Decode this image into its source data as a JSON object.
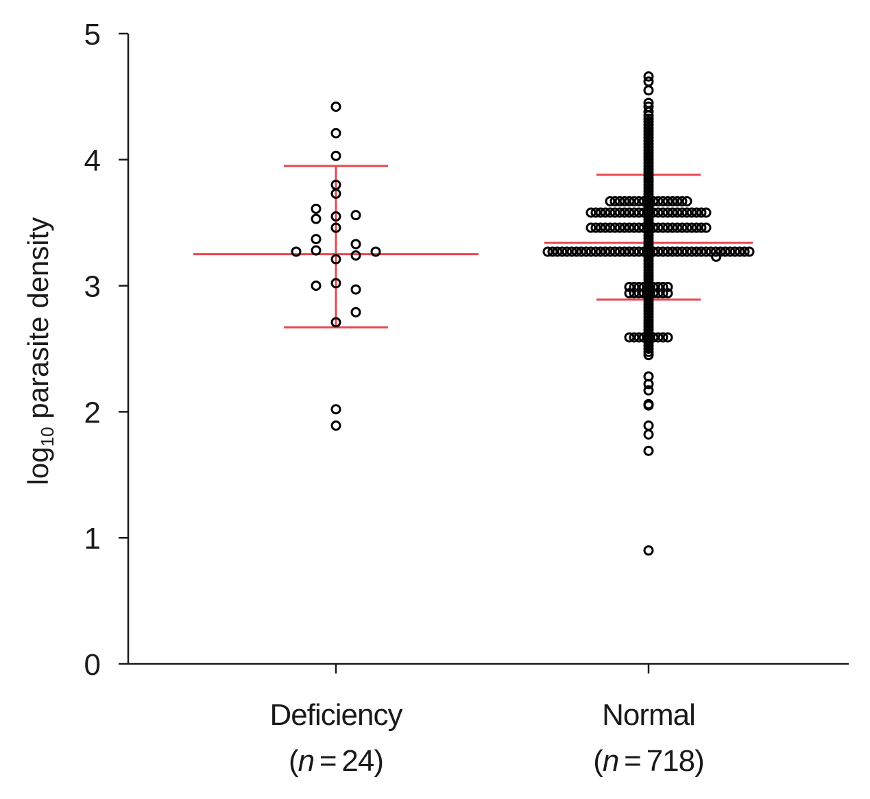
{
  "chart_data": {
    "type": "scatter",
    "subtype": "dot-plot-with-mean-sd",
    "ylabel": {
      "main": "log",
      "sub": "10",
      "rest": " parasite density"
    },
    "ylim": [
      0,
      5
    ],
    "yticks": [
      0,
      1,
      2,
      3,
      4,
      5
    ],
    "grid": false,
    "legend": "none",
    "colors": {
      "points": "#000000",
      "summary": "#e8474f",
      "axis": "#1a1a1a"
    },
    "categories": [
      {
        "label": "Deficiency",
        "n_text": "n",
        "n_value": "24"
      },
      {
        "label": "Normal",
        "n_text": "n",
        "n_value": "718"
      }
    ],
    "series": [
      {
        "category": "Deficiency",
        "mean": 3.25,
        "sd_upper": 3.95,
        "sd_lower": 2.67,
        "points": [
          [
            0,
            4.42
          ],
          [
            0,
            4.21
          ],
          [
            0,
            4.03
          ],
          [
            0,
            3.8
          ],
          [
            0,
            3.73
          ],
          [
            -1,
            3.61
          ],
          [
            -1,
            3.53
          ],
          [
            0,
            3.55
          ],
          [
            1,
            3.56
          ],
          [
            0,
            3.46
          ],
          [
            -1,
            3.37
          ],
          [
            1,
            3.33
          ],
          [
            -2,
            3.27
          ],
          [
            -1,
            3.28
          ],
          [
            1,
            3.24
          ],
          [
            2,
            3.27
          ],
          [
            0,
            3.21
          ],
          [
            -1,
            3.0
          ],
          [
            0,
            3.02
          ],
          [
            1,
            2.97
          ],
          [
            1,
            2.79
          ],
          [
            0,
            2.71
          ],
          [
            0,
            2.02
          ],
          [
            0,
            1.89
          ]
        ]
      },
      {
        "category": "Normal",
        "mean": 3.34,
        "sd_upper": 3.88,
        "sd_lower": 2.89,
        "dense_bands": [
          {
            "y": 3.27,
            "half_width": 5
          },
          {
            "y": 3.46,
            "half_width": 3
          },
          {
            "y": 3.58,
            "half_width": 3
          },
          {
            "y": 3.67,
            "half_width": 2
          },
          {
            "y": 2.99,
            "half_width": 1
          },
          {
            "y": 2.94,
            "half_width": 1
          },
          {
            "y": 2.59,
            "half_width": 1
          }
        ],
        "column": {
          "from": 2.45,
          "to": 4.35,
          "step": 0.025
        },
        "points": [
          [
            0,
            4.66
          ],
          [
            0,
            4.62
          ],
          [
            0,
            4.55
          ],
          [
            0,
            4.45
          ],
          [
            0,
            4.42
          ],
          [
            0,
            4.38
          ],
          [
            0,
            2.28
          ],
          [
            0,
            2.22
          ],
          [
            0,
            2.17
          ],
          [
            0,
            2.06
          ],
          [
            0,
            2.05
          ],
          [
            0,
            1.89
          ],
          [
            0,
            1.82
          ],
          [
            0,
            1.69
          ],
          [
            0,
            0.9
          ],
          [
            3.4,
            3.23
          ]
        ]
      }
    ]
  }
}
